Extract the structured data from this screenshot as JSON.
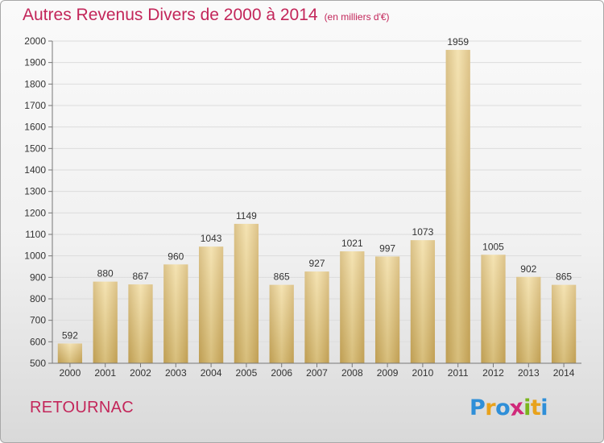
{
  "title": "Autres Revenus Divers de 2000 à 2014",
  "unit_note": "(en milliers d'€)",
  "commune": "RETOURNAC",
  "logo": {
    "letters": [
      "P",
      "r",
      "o",
      "x",
      "i",
      "t",
      "i"
    ],
    "colors": [
      "#2f8fd8",
      "#e8a21c",
      "#2f8fd8",
      "#d0297a",
      "#7ab51d",
      "#e8a21c",
      "#2f8fd8"
    ]
  },
  "chart_data": {
    "type": "bar",
    "categories": [
      "2000",
      "2001",
      "2002",
      "2003",
      "2004",
      "2005",
      "2006",
      "2007",
      "2008",
      "2009",
      "2010",
      "2011",
      "2012",
      "2013",
      "2014"
    ],
    "values": [
      592,
      880,
      867,
      960,
      1043,
      1149,
      865,
      927,
      1021,
      997,
      1073,
      1959,
      1005,
      902,
      865
    ],
    "ylim": [
      500,
      2000
    ],
    "yticks": [
      500,
      600,
      700,
      800,
      900,
      1000,
      1100,
      1200,
      1300,
      1400,
      1500,
      1600,
      1700,
      1800,
      1900,
      2000
    ],
    "grid": true,
    "bar_color": "#e6c97e"
  }
}
